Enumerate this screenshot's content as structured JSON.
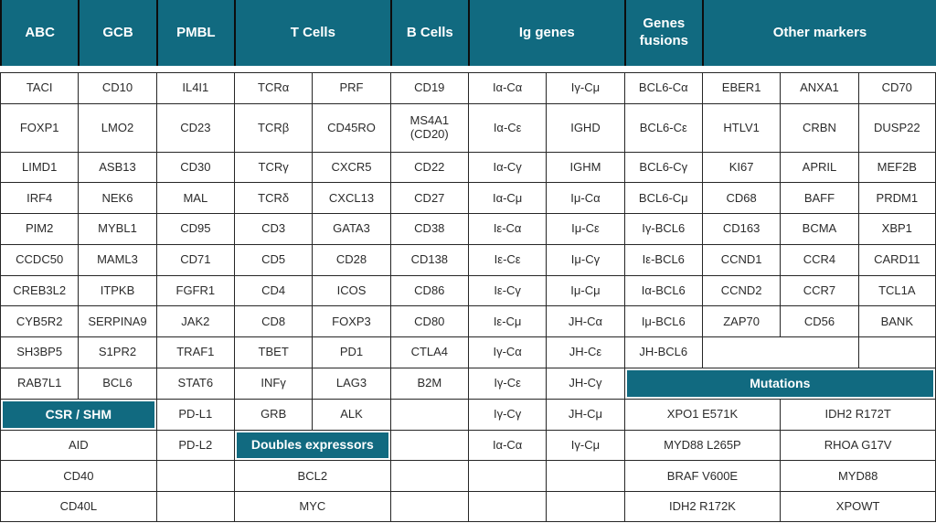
{
  "colors": {
    "header_teal": "#116a80",
    "header_text": "#ffffff",
    "cell_text": "#2b2b2b",
    "border": "#262626",
    "background": "#ffffff"
  },
  "header": {
    "cells": [
      {
        "label": "ABC",
        "span": 1
      },
      {
        "label": "GCB",
        "span": 1
      },
      {
        "label": "PMBL",
        "span": 1
      },
      {
        "label": "T Cells",
        "span": 2
      },
      {
        "label": "B Cells",
        "span": 1
      },
      {
        "label": "Ig genes",
        "span": 2
      },
      {
        "label": "Genes fusions",
        "span": 1
      },
      {
        "label": "Other markers",
        "span": 3
      }
    ]
  },
  "rows": [
    {
      "cells": [
        {
          "t": "TACI"
        },
        {
          "t": "CD10"
        },
        {
          "t": "IL4I1"
        },
        {
          "t": "TCRα"
        },
        {
          "t": "PRF"
        },
        {
          "t": "CD19"
        },
        {
          "t": "Iα-Cα"
        },
        {
          "t": "Iγ-Cμ"
        },
        {
          "t": "BCL6-Cα"
        },
        {
          "t": "EBER1"
        },
        {
          "t": "ANXA1"
        },
        {
          "t": "CD70"
        }
      ]
    },
    {
      "tall": true,
      "cells": [
        {
          "t": "FOXP1"
        },
        {
          "t": "LMO2"
        },
        {
          "t": "CD23"
        },
        {
          "t": "TCRβ"
        },
        {
          "t": "CD45RO"
        },
        {
          "t": "MS4A1 (CD20)"
        },
        {
          "t": "Iα-Cε"
        },
        {
          "t": "IGHD"
        },
        {
          "t": "BCL6-Cε"
        },
        {
          "t": "HTLV1"
        },
        {
          "t": "CRBN"
        },
        {
          "t": "DUSP22"
        }
      ]
    },
    {
      "cells": [
        {
          "t": "LIMD1"
        },
        {
          "t": "ASB13"
        },
        {
          "t": "CD30"
        },
        {
          "t": "TCRγ"
        },
        {
          "t": "CXCR5"
        },
        {
          "t": "CD22"
        },
        {
          "t": "Iα-Cγ"
        },
        {
          "t": "IGHM"
        },
        {
          "t": "BCL6-Cγ"
        },
        {
          "t": "KI67"
        },
        {
          "t": "APRIL"
        },
        {
          "t": "MEF2B"
        }
      ]
    },
    {
      "cells": [
        {
          "t": "IRF4"
        },
        {
          "t": "NEK6"
        },
        {
          "t": "MAL"
        },
        {
          "t": "TCRδ"
        },
        {
          "t": "CXCL13"
        },
        {
          "t": "CD27"
        },
        {
          "t": "Iα-Cμ"
        },
        {
          "t": "Iμ-Cα"
        },
        {
          "t": "BCL6-Cμ"
        },
        {
          "t": "CD68"
        },
        {
          "t": "BAFF"
        },
        {
          "t": "PRDM1"
        }
      ]
    },
    {
      "cells": [
        {
          "t": "PIM2"
        },
        {
          "t": "MYBL1"
        },
        {
          "t": "CD95"
        },
        {
          "t": "CD3"
        },
        {
          "t": "GATA3"
        },
        {
          "t": "CD38"
        },
        {
          "t": "Iε-Cα"
        },
        {
          "t": "Iμ-Cε"
        },
        {
          "t": "Iγ-BCL6"
        },
        {
          "t": "CD163"
        },
        {
          "t": "BCMA"
        },
        {
          "t": "XBP1"
        }
      ]
    },
    {
      "cells": [
        {
          "t": "CCDC50"
        },
        {
          "t": "MAML3"
        },
        {
          "t": "CD71"
        },
        {
          "t": "CD5"
        },
        {
          "t": "CD28"
        },
        {
          "t": "CD138"
        },
        {
          "t": "Iε-Cε"
        },
        {
          "t": "Iμ-Cγ"
        },
        {
          "t": "Iε-BCL6"
        },
        {
          "t": "CCND1"
        },
        {
          "t": "CCR4"
        },
        {
          "t": "CARD11"
        }
      ]
    },
    {
      "cells": [
        {
          "t": "CREB3L2"
        },
        {
          "t": "ITPKB"
        },
        {
          "t": "FGFR1"
        },
        {
          "t": "CD4"
        },
        {
          "t": "ICOS"
        },
        {
          "t": "CD86"
        },
        {
          "t": "Iε-Cγ"
        },
        {
          "t": "Iμ-Cμ"
        },
        {
          "t": "Iα-BCL6"
        },
        {
          "t": "CCND2"
        },
        {
          "t": "CCR7"
        },
        {
          "t": "TCL1A"
        }
      ]
    },
    {
      "cells": [
        {
          "t": "CYB5R2"
        },
        {
          "t": "SERPINA9"
        },
        {
          "t": "JAK2"
        },
        {
          "t": "CD8"
        },
        {
          "t": "FOXP3"
        },
        {
          "t": "CD80"
        },
        {
          "t": "Iε-Cμ"
        },
        {
          "t": "JH-Cα"
        },
        {
          "t": "Iμ-BCL6"
        },
        {
          "t": "ZAP70"
        },
        {
          "t": "CD56"
        },
        {
          "t": "BANK"
        }
      ]
    },
    {
      "cells": [
        {
          "t": "SH3BP5"
        },
        {
          "t": "S1PR2"
        },
        {
          "t": "TRAF1"
        },
        {
          "t": "TBET"
        },
        {
          "t": "PD1"
        },
        {
          "t": "CTLA4"
        },
        {
          "t": "Iγ-Cα"
        },
        {
          "t": "JH-Cε"
        },
        {
          "t": "JH-BCL6"
        },
        {
          "t": "",
          "k": "empty",
          "s": 2
        },
        {
          "t": "",
          "k": "empty"
        }
      ]
    },
    {
      "cells": [
        {
          "t": "RAB7L1"
        },
        {
          "t": "BCL6"
        },
        {
          "t": "STAT6"
        },
        {
          "t": "INFγ"
        },
        {
          "t": "LAG3"
        },
        {
          "t": "B2M"
        },
        {
          "t": "Iγ-Cε"
        },
        {
          "t": "JH-Cγ"
        },
        {
          "t": "Mutations",
          "k": "section",
          "s": 4
        }
      ]
    },
    {
      "cells": [
        {
          "t": "CSR / SHM",
          "k": "section",
          "s": 2
        },
        {
          "t": "PD-L1"
        },
        {
          "t": "GRB"
        },
        {
          "t": "ALK"
        },
        {
          "t": "",
          "k": "empty"
        },
        {
          "t": "Iγ-Cγ"
        },
        {
          "t": "JH-Cμ"
        },
        {
          "t": "XPO1 E571K",
          "s": 2
        },
        {
          "t": "IDH2 R172T",
          "s": 2
        }
      ]
    },
    {
      "cells": [
        {
          "t": "AID",
          "s": 2
        },
        {
          "t": "PD-L2"
        },
        {
          "t": "Doubles expressors",
          "k": "section",
          "s": 2
        },
        {
          "t": "",
          "k": "empty"
        },
        {
          "t": "Iα-Cα"
        },
        {
          "t": "Iγ-Cμ"
        },
        {
          "t": "MYD88 L265P",
          "s": 2
        },
        {
          "t": "RHOA G17V",
          "s": 2
        }
      ]
    },
    {
      "cells": [
        {
          "t": "CD40",
          "s": 2
        },
        {
          "t": "",
          "k": "empty"
        },
        {
          "t": "BCL2",
          "s": 2
        },
        {
          "t": "",
          "k": "empty"
        },
        {
          "t": "",
          "k": "empty"
        },
        {
          "t": "",
          "k": "empty"
        },
        {
          "t": "BRAF V600E",
          "s": 2
        },
        {
          "t": "MYD88",
          "s": 2
        }
      ]
    },
    {
      "cells": [
        {
          "t": "CD40L",
          "s": 2
        },
        {
          "t": "",
          "k": "empty"
        },
        {
          "t": "MYC",
          "s": 2
        },
        {
          "t": "",
          "k": "empty"
        },
        {
          "t": "",
          "k": "empty"
        },
        {
          "t": "",
          "k": "empty"
        },
        {
          "t": "IDH2 R172K",
          "s": 2
        },
        {
          "t": "XPOWT",
          "s": 2
        }
      ]
    }
  ]
}
